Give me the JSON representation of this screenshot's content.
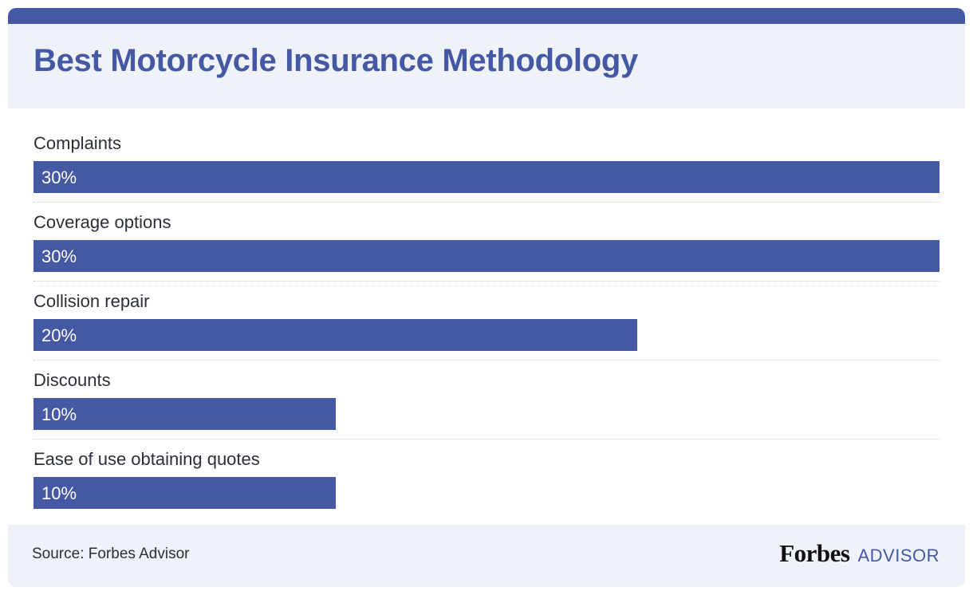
{
  "title": "Best Motorcycle Insurance Methodology",
  "colors": {
    "accent": "#4558a4",
    "panel": "#eff2f8",
    "text": "#2a2f3a"
  },
  "chart_data": {
    "type": "bar",
    "orientation": "horizontal",
    "title": "Best Motorcycle Insurance Methodology",
    "categories": [
      "Complaints",
      "Coverage options",
      "Collision repair",
      "Discounts",
      "Ease of use obtaining quotes"
    ],
    "values": [
      30,
      30,
      20,
      10,
      10
    ],
    "value_labels": [
      "30%",
      "30%",
      "20%",
      "10%",
      "10%"
    ],
    "unit": "%",
    "xlim": [
      0,
      30
    ],
    "grid": false,
    "legend": "none"
  },
  "footer": {
    "source": "Source: Forbes Advisor",
    "brand_name": "Forbes",
    "brand_suffix": "ADVISOR"
  }
}
